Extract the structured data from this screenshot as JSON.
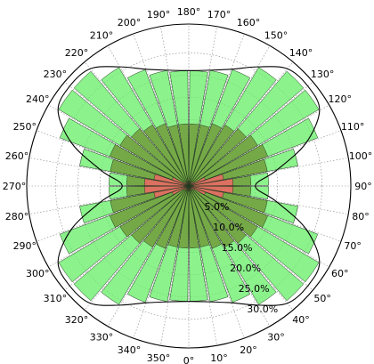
{
  "chart_data": {
    "type": "polar-bar",
    "title": "",
    "theta_zero_location": "bottom",
    "theta_direction": "counterclockwise",
    "bin_width_deg": 10,
    "angle_ticks": [
      "0°",
      "10°",
      "20°",
      "30°",
      "40°",
      "50°",
      "60°",
      "70°",
      "80°",
      "90°",
      "100°",
      "110°",
      "120°",
      "130°",
      "140°",
      "150°",
      "160°",
      "170°",
      "180°",
      "190°",
      "200°",
      "210°",
      "220°",
      "230°",
      "240°",
      "250°",
      "260°",
      "270°",
      "280°",
      "290°",
      "300°",
      "310°",
      "320°",
      "330°",
      "340°",
      "350°"
    ],
    "radial_ticks": [
      "5.0%",
      "10.0%",
      "15.0%",
      "20.0%",
      "25.0%",
      "30.0%"
    ],
    "radial_tick_values": [
      5,
      10,
      15,
      20,
      25,
      30
    ],
    "rlim": [
      0,
      36.5
    ],
    "grid": true,
    "bin_centers_deg": [
      5,
      15,
      25,
      35,
      45,
      55,
      65,
      75,
      85,
      95,
      105,
      115,
      125,
      135,
      145,
      155,
      165,
      175,
      185,
      195,
      205,
      215,
      225,
      235,
      245,
      255,
      265,
      275,
      285,
      295,
      305,
      315,
      325,
      335,
      345,
      355
    ],
    "series": [
      {
        "name": "green",
        "color": "#66ee66",
        "alpha": 0.75,
        "values": [
          26,
          26.5,
          28,
          31,
          34,
          34,
          31,
          25,
          18,
          18,
          25,
          31,
          34,
          34,
          31,
          28,
          26.5,
          26,
          26,
          26.5,
          28,
          31,
          34,
          34,
          31,
          25,
          18,
          18,
          25,
          31,
          34,
          34,
          31,
          28,
          26.5,
          26
        ]
      },
      {
        "name": "olive",
        "color": "#6b8a2a",
        "alpha": 0.7,
        "values": [
          14,
          14,
          15,
          16,
          17,
          18,
          19,
          18,
          14,
          14,
          18,
          19,
          18,
          17,
          16,
          15,
          14,
          14,
          14,
          14,
          15,
          16,
          17,
          18,
          19,
          18,
          14,
          14,
          18,
          19,
          18,
          17,
          16,
          15,
          14,
          14
        ]
      },
      {
        "name": "red",
        "color": "#ee6666",
        "alpha": 0.85,
        "values": [
          1,
          1,
          1,
          1,
          1,
          1.5,
          4,
          8,
          10,
          10,
          8,
          4,
          1.5,
          1,
          1,
          1,
          1,
          1,
          1,
          1,
          1,
          1,
          1,
          1.5,
          4,
          8,
          10,
          10,
          8,
          4,
          1.5,
          1,
          1,
          1,
          1,
          1
        ]
      }
    ],
    "envelope": {
      "color": "#000000",
      "points_deg": [
        [
          0,
          26
        ],
        [
          10,
          26.5
        ],
        [
          20,
          28
        ],
        [
          30,
          31
        ],
        [
          40,
          34.5
        ],
        [
          50,
          35
        ],
        [
          60,
          34
        ],
        [
          70,
          28
        ],
        [
          80,
          20
        ],
        [
          90,
          15
        ],
        [
          100,
          20
        ],
        [
          110,
          28
        ],
        [
          120,
          34
        ],
        [
          130,
          35
        ],
        [
          140,
          34.5
        ],
        [
          150,
          31
        ],
        [
          160,
          28
        ],
        [
          170,
          26.5
        ],
        [
          180,
          26
        ],
        [
          190,
          26.5
        ],
        [
          200,
          28
        ],
        [
          210,
          31
        ],
        [
          220,
          34.5
        ],
        [
          230,
          35
        ],
        [
          240,
          34
        ],
        [
          250,
          28
        ],
        [
          260,
          20
        ],
        [
          270,
          15
        ],
        [
          280,
          20
        ],
        [
          290,
          28
        ],
        [
          300,
          34
        ],
        [
          310,
          35
        ],
        [
          320,
          34.5
        ],
        [
          330,
          31
        ],
        [
          340,
          28
        ],
        [
          350,
          26.5
        ]
      ]
    }
  }
}
